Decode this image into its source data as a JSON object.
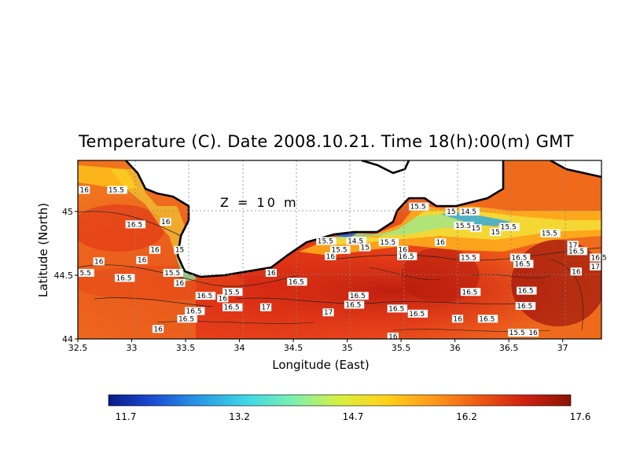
{
  "title": "Temperature (C). Date 2008.10.21. Time 18(h):00(m) GMT",
  "depth_label": "Z = 10 m",
  "x_axis": {
    "label": "Longitude (East)",
    "ticks": [
      "32.5",
      "33",
      "33.5",
      "34",
      "34.5",
      "35",
      "35.5",
      "36",
      "36.5",
      "37"
    ]
  },
  "y_axis": {
    "label": "Latitude (North)",
    "ticks": [
      "44",
      "44.5",
      "45"
    ]
  },
  "colorbar": {
    "ticks": [
      "11.7",
      "13.2",
      "14.7",
      "16.2",
      "17.6"
    ],
    "colors": [
      "#0a1a8a",
      "#1b4fd6",
      "#2a9be6",
      "#3fd8e6",
      "#7df0b0",
      "#d8f040",
      "#ffd21a",
      "#ff9a1a",
      "#f05a14",
      "#cf2010",
      "#8a1408"
    ]
  },
  "contour_labels": [
    {
      "text": "16",
      "lon": 32.5,
      "lat": 45.15
    },
    {
      "text": "15.5",
      "lon": 32.78,
      "lat": 45.15
    },
    {
      "text": "16.5",
      "lon": 32.95,
      "lat": 44.88
    },
    {
      "text": "16",
      "lon": 33.27,
      "lat": 44.9
    },
    {
      "text": "16",
      "lon": 33.17,
      "lat": 44.68
    },
    {
      "text": "15",
      "lon": 33.4,
      "lat": 44.68
    },
    {
      "text": "16",
      "lon": 33.05,
      "lat": 44.6
    },
    {
      "text": "16",
      "lon": 32.65,
      "lat": 44.59
    },
    {
      "text": "5.5",
      "lon": 32.5,
      "lat": 44.5
    },
    {
      "text": "15.5",
      "lon": 33.3,
      "lat": 44.5
    },
    {
      "text": "16.5",
      "lon": 32.85,
      "lat": 44.46
    },
    {
      "text": "16",
      "lon": 33.4,
      "lat": 44.42
    },
    {
      "text": "16.5",
      "lon": 33.6,
      "lat": 44.32
    },
    {
      "text": "16",
      "lon": 33.8,
      "lat": 44.3
    },
    {
      "text": "15.5",
      "lon": 33.85,
      "lat": 44.35
    },
    {
      "text": "16.5",
      "lon": 33.5,
      "lat": 44.2
    },
    {
      "text": "16.5",
      "lon": 33.43,
      "lat": 44.14
    },
    {
      "text": "16.5",
      "lon": 33.85,
      "lat": 44.23
    },
    {
      "text": "16",
      "lon": 33.2,
      "lat": 44.06
    },
    {
      "text": "17",
      "lon": 34.2,
      "lat": 44.23
    },
    {
      "text": "16",
      "lon": 34.25,
      "lat": 44.5
    },
    {
      "text": "16.5",
      "lon": 34.45,
      "lat": 44.43
    },
    {
      "text": "16",
      "lon": 34.8,
      "lat": 44.63
    },
    {
      "text": "15.5",
      "lon": 34.72,
      "lat": 44.75
    },
    {
      "text": "15.5",
      "lon": 34.85,
      "lat": 44.68
    },
    {
      "text": "14.5",
      "lon": 35,
      "lat": 44.75
    },
    {
      "text": "15",
      "lon": 35.12,
      "lat": 44.7
    },
    {
      "text": "15.5",
      "lon": 35.3,
      "lat": 44.74
    },
    {
      "text": "16",
      "lon": 35.47,
      "lat": 44.68
    },
    {
      "text": "16.5",
      "lon": 35.47,
      "lat": 44.63
    },
    {
      "text": "16",
      "lon": 35.82,
      "lat": 44.74
    },
    {
      "text": "15.5",
      "lon": 35.58,
      "lat": 45.02
    },
    {
      "text": "15",
      "lon": 35.92,
      "lat": 44.98
    },
    {
      "text": "14.5",
      "lon": 36.05,
      "lat": 44.98
    },
    {
      "text": "15.5",
      "lon": 36,
      "lat": 44.87
    },
    {
      "text": "15",
      "lon": 36.15,
      "lat": 44.85
    },
    {
      "text": "15.5",
      "lon": 36.42,
      "lat": 44.86
    },
    {
      "text": "15",
      "lon": 36.33,
      "lat": 44.82
    },
    {
      "text": "15.5",
      "lon": 36.8,
      "lat": 44.81
    },
    {
      "text": "15.5",
      "lon": 36.05,
      "lat": 44.62
    },
    {
      "text": "16.5",
      "lon": 37.05,
      "lat": 44.67
    },
    {
      "text": "17",
      "lon": 37.05,
      "lat": 44.72
    },
    {
      "text": "16.5",
      "lon": 37.3,
      "lat": 44.62
    },
    {
      "text": "16",
      "lon": 37.08,
      "lat": 44.51
    },
    {
      "text": "17",
      "lon": 37.3,
      "lat": 44.55
    },
    {
      "text": "16.5",
      "lon": 36.52,
      "lat": 44.62
    },
    {
      "text": "16.5",
      "lon": 36.55,
      "lat": 44.57
    },
    {
      "text": "16.5",
      "lon": 36.06,
      "lat": 44.35
    },
    {
      "text": "16.5",
      "lon": 36.58,
      "lat": 44.36
    },
    {
      "text": "16.5",
      "lon": 35.02,
      "lat": 44.32
    },
    {
      "text": "16.5",
      "lon": 34.98,
      "lat": 44.25
    },
    {
      "text": "17",
      "lon": 34.78,
      "lat": 44.19
    },
    {
      "text": "16.5",
      "lon": 35.38,
      "lat": 44.22
    },
    {
      "text": "16.5",
      "lon": 35.57,
      "lat": 44.18
    },
    {
      "text": "16",
      "lon": 35.98,
      "lat": 44.14
    },
    {
      "text": "16.5",
      "lon": 36.22,
      "lat": 44.14
    },
    {
      "text": "16.5",
      "lon": 36.57,
      "lat": 44.24
    },
    {
      "text": "16",
      "lon": 35.38,
      "lat": 44.0
    },
    {
      "text": "15.5",
      "lon": 36.5,
      "lat": 44.03
    },
    {
      "text": "16",
      "lon": 36.68,
      "lat": 44.03
    }
  ]
}
